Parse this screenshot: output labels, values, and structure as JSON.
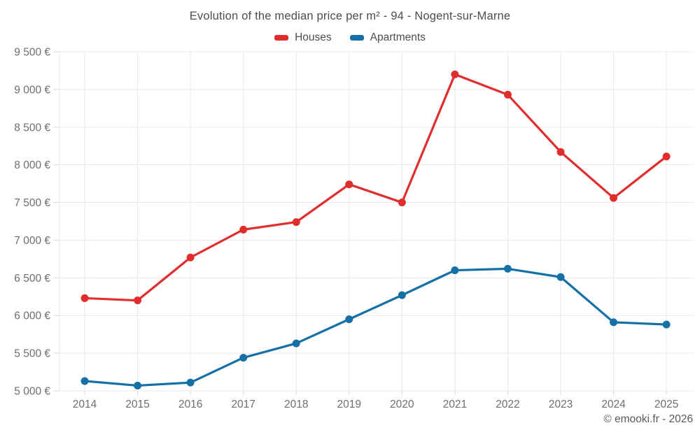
{
  "title": "Evolution of the median price per m² - 94 - Nogent-sur-Marne",
  "copyright": "© emooki.fr - 2026",
  "colors": {
    "houses": "#e02d2d",
    "apartments": "#1570a5",
    "grid": "#e9e9e9",
    "tick": "#d9d9d9",
    "axis_text": "#6e6e6e",
    "title_text": "#4d4d4d"
  },
  "chart_data": {
    "type": "line",
    "title": "Evolution of the median price per m² - 94 - Nogent-sur-Marne",
    "xlabel": "",
    "ylabel": "",
    "x": [
      2014,
      2015,
      2016,
      2017,
      2018,
      2019,
      2020,
      2021,
      2022,
      2023,
      2024,
      2025
    ],
    "series": [
      {
        "name": "Houses",
        "color": "#e02d2d",
        "values": [
          6230,
          6200,
          6770,
          7140,
          7240,
          7740,
          7500,
          9200,
          8930,
          8170,
          7560,
          8110
        ]
      },
      {
        "name": "Apartments",
        "color": "#1570a5",
        "values": [
          5130,
          5070,
          5110,
          5440,
          5630,
          5950,
          6270,
          6600,
          6620,
          6510,
          5910,
          5880
        ]
      }
    ],
    "ylim": [
      5000,
      9500
    ],
    "ytick_step": 500,
    "ytick_labels": [
      "5 000 €",
      "5 500 €",
      "6 000 €",
      "6 500 €",
      "7 000 €",
      "7 500 €",
      "8 000 €",
      "8 500 €",
      "9 000 €",
      "9 500 €"
    ],
    "grid": true,
    "legend_position": "top"
  }
}
